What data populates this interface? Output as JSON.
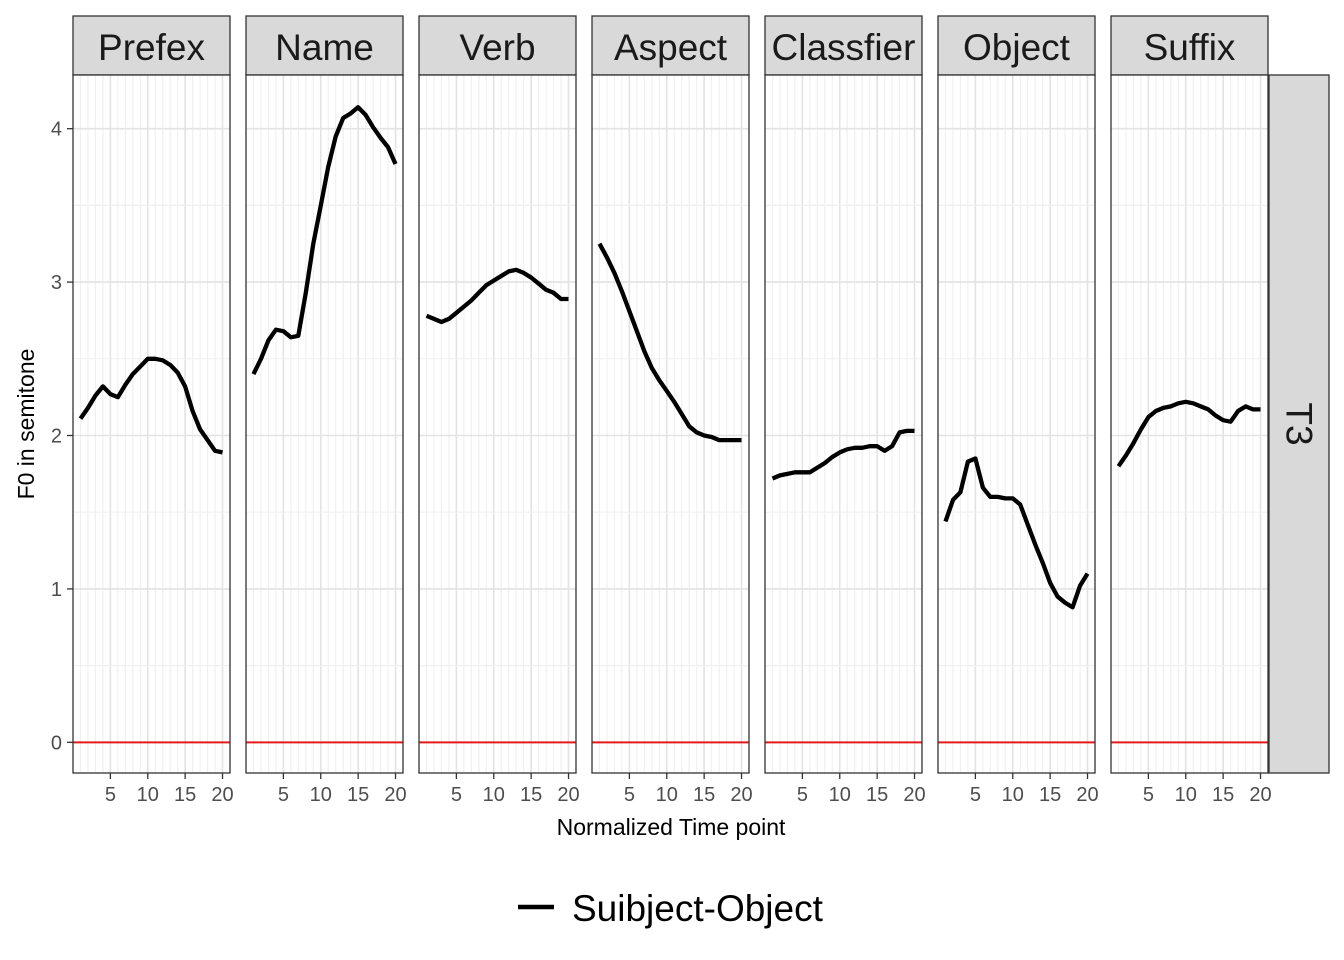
{
  "chart_data": {
    "type": "line",
    "facet_row_label": "T3",
    "xlabel": "Normalized Time point",
    "ylabel": "F0 in semitone",
    "xlim": [
      0,
      21
    ],
    "ylim": [
      -0.2,
      4.35
    ],
    "x_ticks": [
      5,
      10,
      15,
      20
    ],
    "y_ticks": [
      0,
      1,
      2,
      3,
      4
    ],
    "reference_line": {
      "y": 0,
      "color": "#e41a1c"
    },
    "grid": true,
    "legend": {
      "position": "bottom",
      "entries": [
        "Suibject-Object"
      ]
    },
    "series_color": "#000000",
    "x": [
      1,
      2,
      3,
      4,
      5,
      6,
      7,
      8,
      9,
      10,
      11,
      12,
      13,
      14,
      15,
      16,
      17,
      18,
      19,
      20
    ],
    "panels": [
      {
        "title": "Prefex",
        "values": [
          2.11,
          2.18,
          2.26,
          2.32,
          2.27,
          2.25,
          2.33,
          2.4,
          2.45,
          2.5,
          2.5,
          2.49,
          2.46,
          2.41,
          2.32,
          2.16,
          2.04,
          1.97,
          1.9,
          1.89
        ]
      },
      {
        "title": "Name",
        "values": [
          2.4,
          2.5,
          2.62,
          2.69,
          2.68,
          2.64,
          2.65,
          2.93,
          3.25,
          3.5,
          3.75,
          3.95,
          4.07,
          4.1,
          4.14,
          4.09,
          4.01,
          3.94,
          3.88,
          3.77
        ]
      },
      {
        "title": "Verb",
        "values": [
          2.78,
          2.76,
          2.74,
          2.76,
          2.8,
          2.84,
          2.88,
          2.93,
          2.98,
          3.01,
          3.04,
          3.07,
          3.08,
          3.06,
          3.03,
          2.99,
          2.95,
          2.93,
          2.89,
          2.89
        ]
      },
      {
        "title": "Aspect",
        "values": [
          3.25,
          3.16,
          3.06,
          2.94,
          2.81,
          2.68,
          2.55,
          2.44,
          2.36,
          2.29,
          2.22,
          2.14,
          2.06,
          2.02,
          2.0,
          1.99,
          1.97,
          1.97,
          1.97,
          1.97
        ]
      },
      {
        "title": "Classfier",
        "values": [
          1.72,
          1.74,
          1.75,
          1.76,
          1.76,
          1.76,
          1.79,
          1.82,
          1.86,
          1.89,
          1.91,
          1.92,
          1.92,
          1.93,
          1.93,
          1.9,
          1.93,
          2.02,
          2.03,
          2.03
        ]
      },
      {
        "title": "Object",
        "values": [
          1.44,
          1.58,
          1.63,
          1.83,
          1.85,
          1.66,
          1.6,
          1.6,
          1.59,
          1.59,
          1.55,
          1.42,
          1.29,
          1.17,
          1.04,
          0.95,
          0.91,
          0.88,
          1.02,
          1.1
        ]
      },
      {
        "title": "Suffix",
        "values": [
          1.8,
          1.87,
          1.95,
          2.04,
          2.12,
          2.16,
          2.18,
          2.19,
          2.21,
          2.22,
          2.21,
          2.19,
          2.17,
          2.13,
          2.1,
          2.09,
          2.16,
          2.19,
          2.17,
          2.17
        ]
      }
    ]
  }
}
